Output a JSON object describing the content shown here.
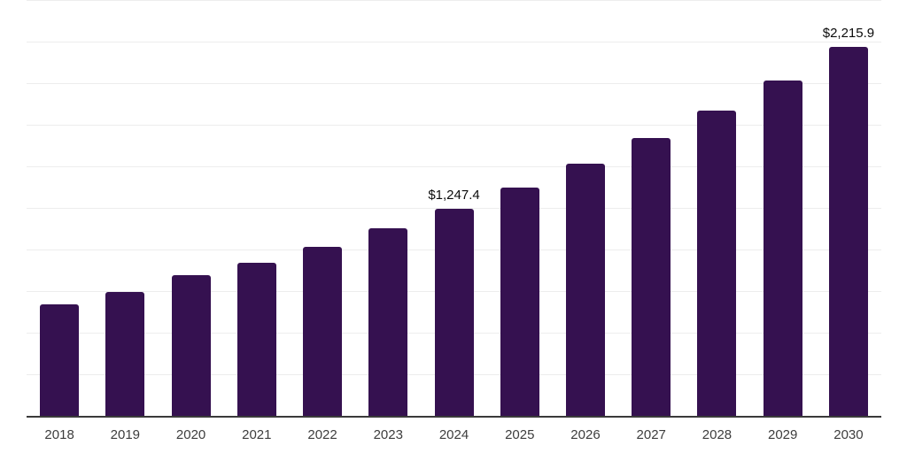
{
  "chart_data": {
    "type": "bar",
    "title": "",
    "xlabel": "",
    "ylabel": "",
    "categories": [
      "2018",
      "2019",
      "2020",
      "2021",
      "2022",
      "2023",
      "2024",
      "2025",
      "2026",
      "2027",
      "2028",
      "2029",
      "2030"
    ],
    "values": [
      670,
      745,
      846,
      920,
      1016,
      1128,
      1247.4,
      1372,
      1515,
      1670,
      1834,
      2015,
      2215.9
    ],
    "data_labels": {
      "2024": "$1,247.4",
      "2030": "$2,215.9"
    },
    "ylim": [
      0,
      2500
    ],
    "gridline_step": 250,
    "grid": "horizontal",
    "legend": "none",
    "bar_color": "#351150",
    "gridline_color": "#ededed",
    "axis_color": "#3a3a3a",
    "tick_label_color": "#3d3d3d",
    "data_label_color": "#0a0a0a",
    "background_color": "#ffffff"
  }
}
